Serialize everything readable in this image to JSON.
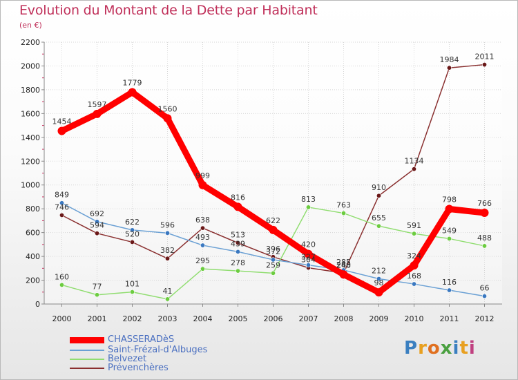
{
  "title": "Evolution du Montant de la Dette par Habitant",
  "subtitle": "(en €)",
  "logo": {
    "text": "Proxiti",
    "letter_colors": [
      "#3a7fc0",
      "#e8a020",
      "#e07020",
      "#4aa040",
      "#3a7fc0",
      "#e8a020",
      "#c04080"
    ]
  },
  "chart_data": {
    "type": "line",
    "title": "Evolution du Montant de la Dette par Habitant",
    "subtitle": "(en €)",
    "xlabel": "",
    "ylabel": "",
    "x": [
      "2000",
      "2001",
      "2002",
      "2003",
      "2004",
      "2005",
      "2006",
      "2007",
      "2008",
      "2009",
      "2010",
      "2011",
      "2012"
    ],
    "ylim": [
      0,
      2200
    ],
    "yticks": [
      "0",
      "200",
      "400",
      "600",
      "800",
      "1000",
      "1200",
      "1400",
      "1600",
      "1800",
      "2000",
      "2200"
    ],
    "grid": true,
    "legend_position": "bottom-left",
    "series": [
      {
        "name": "CHASSERADèS",
        "color": "#ff0000",
        "marker_color": "#ff0000",
        "values": [
          1454,
          1597,
          1779,
          1560,
          999,
          816,
          622,
          420,
          248,
          98,
          324,
          798,
          766
        ],
        "labels": [
          "1454",
          "1597",
          "1779",
          "1560",
          "999",
          "816",
          "622",
          "420",
          "248",
          "98",
          "324",
          "798",
          "766"
        ]
      },
      {
        "name": "Saint-Frézal-d'Albuges",
        "color": "#6aa0d4",
        "marker_color": "#3a78c0",
        "values": [
          849,
          692,
          622,
          596,
          493,
          439,
          372,
          327,
          285,
          212,
          168,
          116,
          66
        ],
        "labels": [
          "849",
          "692",
          "622",
          "596",
          "493",
          "439",
          "372",
          "327",
          "285",
          "212",
          "168",
          "116",
          "66"
        ]
      },
      {
        "name": "Belvezet",
        "color": "#90dd70",
        "marker_color": "#6ccc40",
        "values": [
          160,
          77,
          101,
          41,
          295,
          278,
          259,
          813,
          763,
          655,
          591,
          549,
          488
        ],
        "labels": [
          "160",
          "77",
          "101",
          "41",
          "295",
          "278",
          "259",
          "813",
          "763",
          "655",
          "591",
          "549",
          "488"
        ]
      },
      {
        "name": "Prévenchères",
        "color": "#8a3030",
        "marker_color": "#6a1818",
        "values": [
          746,
          594,
          520,
          382,
          638,
          513,
          396,
          304,
          260,
          910,
          1134,
          1984,
          2011
        ],
        "labels": [
          "746",
          "594",
          "520",
          "382",
          "638",
          "513",
          "396",
          "304",
          "260",
          "910",
          "1134",
          "1984",
          "2011"
        ]
      }
    ]
  }
}
